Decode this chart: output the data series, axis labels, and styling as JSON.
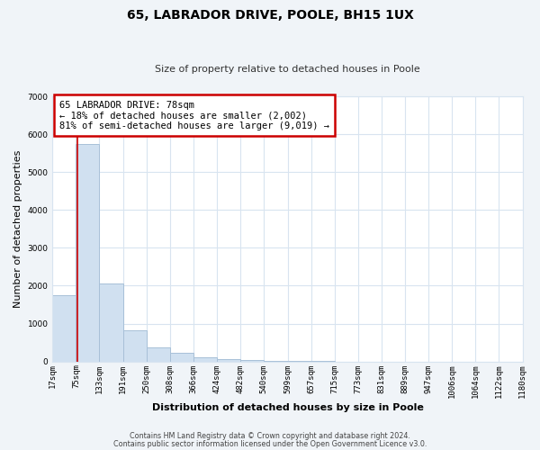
{
  "title": "65, LABRADOR DRIVE, POOLE, BH15 1UX",
  "subtitle": "Size of property relative to detached houses in Poole",
  "xlabel": "Distribution of detached houses by size in Poole",
  "ylabel": "Number of detached properties",
  "bar_edges": [
    17,
    75,
    133,
    191,
    250,
    308,
    366,
    424,
    482,
    540,
    599,
    657,
    715,
    773,
    831,
    889,
    947,
    1006,
    1064,
    1122,
    1180
  ],
  "bar_heights": [
    1750,
    5750,
    2050,
    820,
    370,
    220,
    110,
    55,
    30,
    10,
    5,
    5,
    0,
    0,
    0,
    0,
    0,
    0,
    0,
    0
  ],
  "bar_color": "#d0e0f0",
  "bar_edge_color": "#a8c0d8",
  "property_line_x": 78,
  "property_line_color": "#cc0000",
  "ylim": [
    0,
    7000
  ],
  "yticks": [
    0,
    1000,
    2000,
    3000,
    4000,
    5000,
    6000,
    7000
  ],
  "annotation_box_text": "65 LABRADOR DRIVE: 78sqm\n← 18% of detached houses are smaller (2,002)\n81% of semi-detached houses are larger (9,019) →",
  "annotation_box_facecolor": "#ffffff",
  "annotation_box_edge_color": "#cc0000",
  "footer_line1": "Contains HM Land Registry data © Crown copyright and database right 2024.",
  "footer_line2": "Contains public sector information licensed under the Open Government Licence v3.0.",
  "plot_bg_color": "#ffffff",
  "fig_bg_color": "#f0f4f8",
  "grid_color": "#d8e4f0",
  "tick_labels": [
    "17sqm",
    "75sqm",
    "133sqm",
    "191sqm",
    "250sqm",
    "308sqm",
    "366sqm",
    "424sqm",
    "482sqm",
    "540sqm",
    "599sqm",
    "657sqm",
    "715sqm",
    "773sqm",
    "831sqm",
    "889sqm",
    "947sqm",
    "1006sqm",
    "1064sqm",
    "1122sqm",
    "1180sqm"
  ],
  "title_fontsize": 10,
  "subtitle_fontsize": 8,
  "axis_label_fontsize": 8,
  "tick_fontsize": 6.5,
  "annotation_fontsize": 7.5,
  "footer_fontsize": 5.8
}
